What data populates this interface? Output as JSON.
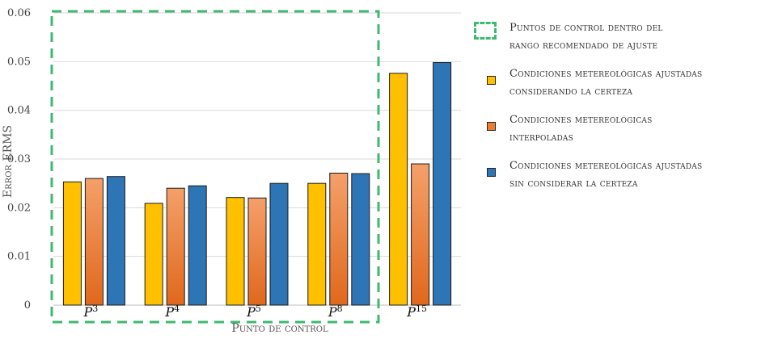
{
  "chart_data": {
    "type": "bar",
    "title": "",
    "xlabel": "Punto de control",
    "ylabel": "Error ERMS",
    "ylim": [
      0,
      0.06
    ],
    "yticks": [
      "0",
      "0.01",
      "0.02",
      "0.03",
      "0.04",
      "0.05",
      "0.06"
    ],
    "grid": true,
    "legend_position": "right",
    "categories": [
      {
        "base": "P",
        "sup": "3"
      },
      {
        "base": "P",
        "sup": "4"
      },
      {
        "base": "P",
        "sup": "5"
      },
      {
        "base": "P",
        "sup": "8"
      },
      {
        "base": "P",
        "sup": "15"
      }
    ],
    "series": [
      {
        "name": "Condiciones metereológicas ajustadas considerando la certeza",
        "color": "#ffc000",
        "values": [
          0.0253,
          0.0209,
          0.0221,
          0.025,
          0.0476
        ]
      },
      {
        "name": "Condiciones metereológicas interpoladas",
        "color": "#ed7d31",
        "values": [
          0.026,
          0.024,
          0.022,
          0.0271,
          0.029
        ]
      },
      {
        "name": "Condiciones metereológicas ajustadas sin considerar la certeza",
        "color": "#2e75b6",
        "values": [
          0.0264,
          0.0245,
          0.025,
          0.027,
          0.0498
        ]
      }
    ],
    "highlight_region": {
      "label": "Puntos de control dentro del rango recomendado de ajuste",
      "categories": [
        "P3",
        "P4",
        "P5",
        "P8"
      ],
      "color": "#3dba6f"
    }
  },
  "legend": {
    "highlight_line1": "Puntos de control dentro del",
    "highlight_line2": "rango recomendado de ajuste",
    "s1_line1": "Condiciones metereológicas ajustadas",
    "s1_line2": "considerando la certeza",
    "s2_line1": "Condiciones metereológicas",
    "s2_line2": "interpoladas",
    "s3_line1": "Condiciones metereológicas ajustadas",
    "s3_line2": "sin considerar la certeza"
  }
}
